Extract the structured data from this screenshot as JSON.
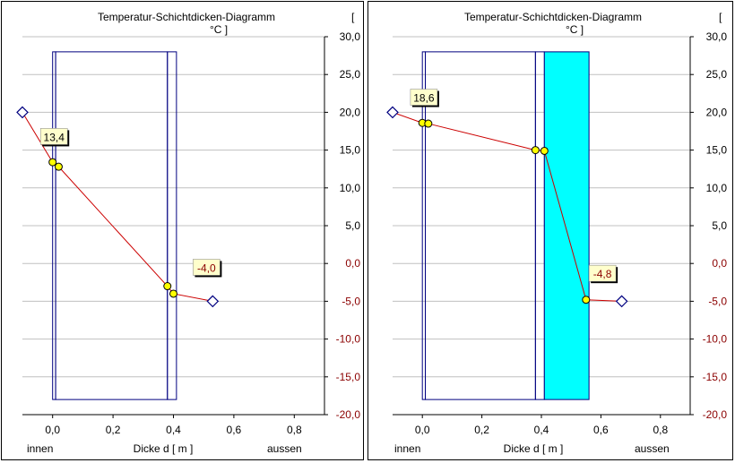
{
  "chart_data": [
    {
      "type": "line",
      "title": "Temperatur-Schichtdicken-Diagramm",
      "unit_bracket": "[",
      "unit_label": "°C ]",
      "xlabel": "Dicke d [ m ]",
      "inside_label": "innen",
      "outside_label": "aussen",
      "xlim": [
        -0.1,
        0.9
      ],
      "ylim": [
        -20,
        30
      ],
      "xticks": [
        0.0,
        0.2,
        0.4,
        0.6,
        0.8
      ],
      "xtick_labels": [
        "0,0",
        "0,2",
        "0,4",
        "0,6",
        "0,8"
      ],
      "yticks": [
        30,
        25,
        20,
        15,
        10,
        5,
        0,
        -5,
        -10,
        -15,
        -20
      ],
      "ytick_labels": [
        "30,0",
        "25,0",
        "20,0",
        "15,0",
        "10,0",
        "5,0",
        "0,0",
        "-5,0",
        "-10,0",
        "-15,0",
        "-20,0"
      ],
      "grid": true,
      "layers": [
        {
          "x0": 0.0,
          "x1": 0.01,
          "fill": "none"
        },
        {
          "x0": 0.01,
          "x1": 0.38,
          "fill": "none"
        },
        {
          "x0": 0.38,
          "x1": 0.41,
          "fill": "none"
        }
      ],
      "layer_band": [
        -18,
        28
      ],
      "series": [
        {
          "x": [
            -0.1,
            0.0,
            0.02,
            0.38,
            0.4,
            0.53
          ],
          "y": [
            20.0,
            13.4,
            12.8,
            -3.0,
            -4.0,
            -5.0
          ]
        }
      ],
      "air_points": [
        {
          "x": -0.1,
          "y": 20.0
        },
        {
          "x": 0.53,
          "y": -5.0
        }
      ],
      "labels": [
        {
          "text": "13,4",
          "x": -0.04,
          "y": 16.8,
          "color": "#000000"
        },
        {
          "text": "-4,0",
          "x": 0.465,
          "y": -0.5,
          "color": "#8B0000"
        }
      ],
      "line_color": "#CC0000"
    },
    {
      "type": "line",
      "title": "Temperatur-Schichtdicken-Diagramm",
      "unit_bracket": "[",
      "unit_label": "°C ]",
      "xlabel": "Dicke d [ m ]",
      "inside_label": "innen",
      "outside_label": "aussen",
      "xlim": [
        -0.1,
        0.9
      ],
      "ylim": [
        -20,
        30
      ],
      "xticks": [
        0.0,
        0.2,
        0.4,
        0.6,
        0.8
      ],
      "xtick_labels": [
        "0,0",
        "0,2",
        "0,4",
        "0,6",
        "0,8"
      ],
      "yticks": [
        30,
        25,
        20,
        15,
        10,
        5,
        0,
        -5,
        -10,
        -15,
        -20
      ],
      "ytick_labels": [
        "30,0",
        "25,0",
        "20,0",
        "15,0",
        "10,0",
        "5,0",
        "0,0",
        "-5,0",
        "-10,0",
        "-15,0",
        "-20,0"
      ],
      "grid": true,
      "layers": [
        {
          "x0": 0.0,
          "x1": 0.01,
          "fill": "none"
        },
        {
          "x0": 0.01,
          "x1": 0.38,
          "fill": "none"
        },
        {
          "x0": 0.38,
          "x1": 0.41,
          "fill": "none"
        },
        {
          "x0": 0.41,
          "x1": 0.56,
          "fill": "#00FFFF"
        }
      ],
      "layer_band": [
        -18,
        28
      ],
      "series": [
        {
          "x": [
            -0.1,
            0.0,
            0.02,
            0.38,
            0.41,
            0.55,
            0.67
          ],
          "y": [
            20.0,
            18.6,
            18.5,
            15.0,
            14.9,
            -4.8,
            -5.0
          ]
        }
      ],
      "air_points": [
        {
          "x": -0.1,
          "y": 20.0
        },
        {
          "x": 0.67,
          "y": -5.0
        }
      ],
      "labels": [
        {
          "text": "18,6",
          "x": -0.04,
          "y": 22.0,
          "color": "#000000"
        },
        {
          "text": "-4,8",
          "x": 0.56,
          "y": -1.3,
          "color": "#8B0000"
        }
      ],
      "line_color": "#CC0000"
    }
  ]
}
